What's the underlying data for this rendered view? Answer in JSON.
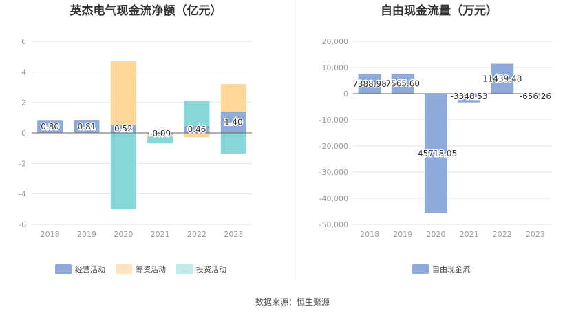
{
  "chart_data": [
    {
      "type": "bar",
      "stacked": true,
      "title": "英杰电气现金流净额（亿元）",
      "categories": [
        "2018",
        "2019",
        "2020",
        "2021",
        "2022",
        "2023"
      ],
      "ylim": [
        -6,
        6
      ],
      "yticks": [
        6,
        4,
        2,
        0,
        -2,
        -4,
        -6
      ],
      "grid": true,
      "legend_position": "bottom",
      "series": [
        {
          "name": "经营活动",
          "color": "#8eaadb",
          "values": [
            0.8,
            0.81,
            0.52,
            -0.09,
            0.46,
            1.4
          ],
          "labels": [
            "0.80",
            "0.81",
            "0.52",
            "-0.09",
            "0.46",
            "1.40"
          ]
        },
        {
          "name": "筹资活动",
          "color": "#ffd899",
          "values": [
            0.0,
            0.0,
            4.2,
            -0.15,
            -0.28,
            1.8
          ]
        },
        {
          "name": "投资活动",
          "color": "#87d7d9",
          "values": [
            0.0,
            0.0,
            -5.0,
            -0.45,
            1.65,
            -1.35
          ]
        }
      ],
      "legend": [
        {
          "name": "经营活动",
          "color": "#8eaadb"
        },
        {
          "name": "筹资活动",
          "color": "#fce3bd"
        },
        {
          "name": "投资活动",
          "color": "#c0e9ea"
        }
      ]
    },
    {
      "type": "bar",
      "title": "自由现金流量（万元）",
      "categories": [
        "2018",
        "2019",
        "2020",
        "2021",
        "2022",
        "2023"
      ],
      "ylim": [
        -50000,
        20000
      ],
      "yticks": [
        20000,
        10000,
        0,
        -10000,
        -20000,
        -30000,
        -40000,
        -50000
      ],
      "ytick_labels": [
        "20,000",
        "10,000",
        "0",
        "-10,000",
        "-20,000",
        "-30,000",
        "-40,000",
        "-50,000"
      ],
      "grid": true,
      "legend_position": "bottom",
      "series": [
        {
          "name": "自由现金流",
          "color": "#8eaadb",
          "values": [
            7388.98,
            7565.6,
            -45718.05,
            -3348.53,
            11439.48,
            -656.26
          ],
          "labels": [
            "7388.98",
            "7565.60",
            "-45718.05",
            "-3348.53",
            "11439.48",
            "-656.26"
          ]
        }
      ]
    }
  ],
  "footer": {
    "source": "数据来源：恒生聚源"
  }
}
